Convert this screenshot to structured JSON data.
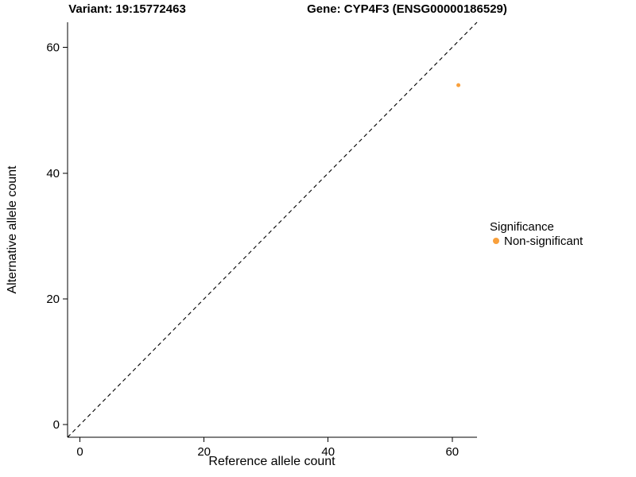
{
  "chart_data": {
    "type": "scatter",
    "title_left": "Variant: 19:15772463",
    "title_right": "Gene: CYP4F3 (ENSG00000186529)",
    "xlabel": "Reference allele count",
    "ylabel": "Alternative allele count",
    "xlim": [
      -2,
      64
    ],
    "ylim": [
      -2,
      64
    ],
    "xticks": [
      0,
      20,
      40,
      60
    ],
    "yticks": [
      0,
      20,
      40,
      60
    ],
    "grid": false,
    "identity_line": {
      "style": "dashed",
      "color": "#000000",
      "from": [
        -2,
        -2
      ],
      "to": [
        64,
        64
      ]
    },
    "series": [
      {
        "name": "Non-significant",
        "color": "#F9A03C",
        "point_radius": 2.5,
        "points": [
          {
            "x": 61,
            "y": 54
          }
        ]
      }
    ],
    "legend": {
      "position": "right",
      "title": "Significance",
      "entries": [
        {
          "label": "Non-significant",
          "color": "#F9A03C"
        }
      ]
    }
  }
}
